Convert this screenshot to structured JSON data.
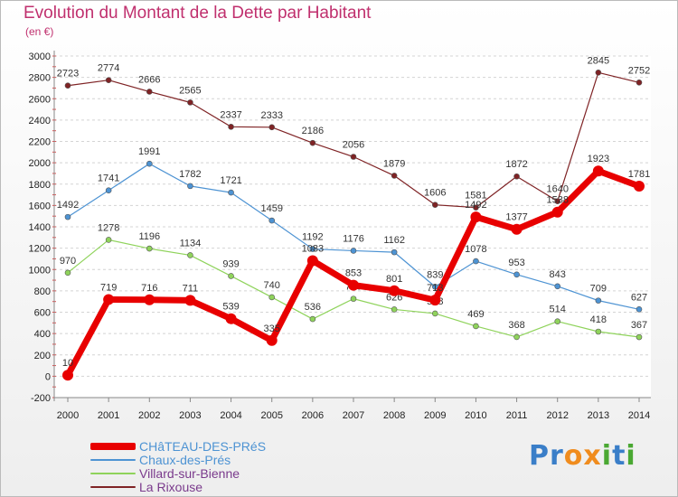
{
  "title": "Evolution du Montant de la Dette par Habitant",
  "subtitle": "(en €)",
  "brand": {
    "letters": [
      {
        "ch": "P",
        "color": "#3a7ec8"
      },
      {
        "ch": "r",
        "color": "#3a7ec8"
      },
      {
        "ch": "o",
        "color": "#f08c1e"
      },
      {
        "ch": "x",
        "color": "#f08c1e"
      },
      {
        "ch": "i",
        "color": "#4aa832"
      },
      {
        "ch": "t",
        "color": "#3a7ec8"
      },
      {
        "ch": "i",
        "color": "#4aa832"
      }
    ]
  },
  "chart_data": {
    "type": "line",
    "title": "Evolution du Montant de la Dette par Habitant",
    "ylabel": "(en €)",
    "x": [
      "2000",
      "2001",
      "2002",
      "2003",
      "2004",
      "2005",
      "2006",
      "2007",
      "2008",
      "2009",
      "2010",
      "2011",
      "2012",
      "2013",
      "2014"
    ],
    "ylim": [
      -200,
      3000
    ],
    "yticks": [
      -200,
      0,
      200,
      400,
      600,
      800,
      1000,
      1200,
      1400,
      1600,
      1800,
      2000,
      2200,
      2400,
      2600,
      2800,
      3000
    ],
    "grid": true,
    "legend_position": "bottom-left",
    "series": [
      {
        "name": "La Rixouse",
        "color": "#7f2325",
        "values": [
          2723,
          2774,
          2666,
          2565,
          2337,
          2333,
          2186,
          2056,
          1879,
          1606,
          1581,
          1872,
          1640,
          2845,
          2752
        ],
        "labels": [
          "2723",
          "2774",
          "2666",
          "2565",
          "2337",
          "2333",
          "2186",
          "2056",
          "1879",
          "1606",
          "1581",
          "1872",
          "1640",
          "2845",
          "2752"
        ]
      },
      {
        "name": "Chaux-des-Prés",
        "color": "#4d93d3",
        "values": [
          1492,
          1741,
          1991,
          1782,
          1721,
          1459,
          1192,
          1176,
          1162,
          839,
          1078,
          953,
          843,
          709,
          627
        ],
        "labels": [
          "1492",
          "1741",
          "1991",
          "1782",
          "1721",
          "1459",
          "1192",
          "1176",
          "1162",
          "839",
          "1078",
          "953",
          "843",
          "709",
          "627"
        ]
      },
      {
        "name": "Villard-sur-Bienne",
        "color": "#8fd35b",
        "values": [
          970,
          1278,
          1196,
          1134,
          939,
          740,
          536,
          726,
          626,
          588,
          469,
          368,
          514,
          418,
          367
        ],
        "labels": [
          "970",
          "1278",
          "1196",
          "1134",
          "939",
          "740",
          "536",
          "726",
          "626",
          "588",
          "469",
          "368",
          "514",
          "418",
          "367"
        ]
      },
      {
        "name": "CHâTEAU-DES-PRéS",
        "color": "#e80000",
        "values": [
          10,
          719,
          716,
          711,
          539,
          335,
          1083,
          853,
          801,
          713,
          1492,
          1377,
          1538,
          1923,
          1781
        ],
        "labels": [
          "10",
          "719",
          "716",
          "711",
          "539",
          "335",
          "1083",
          "853",
          "801",
          "713",
          "1492",
          "1377",
          "1538",
          "1923",
          "1781"
        ]
      }
    ],
    "legend": [
      "CHâTEAU-DES-PRéS",
      "Chaux-des-Prés",
      "Villard-sur-Bienne",
      "La Rixouse"
    ]
  }
}
